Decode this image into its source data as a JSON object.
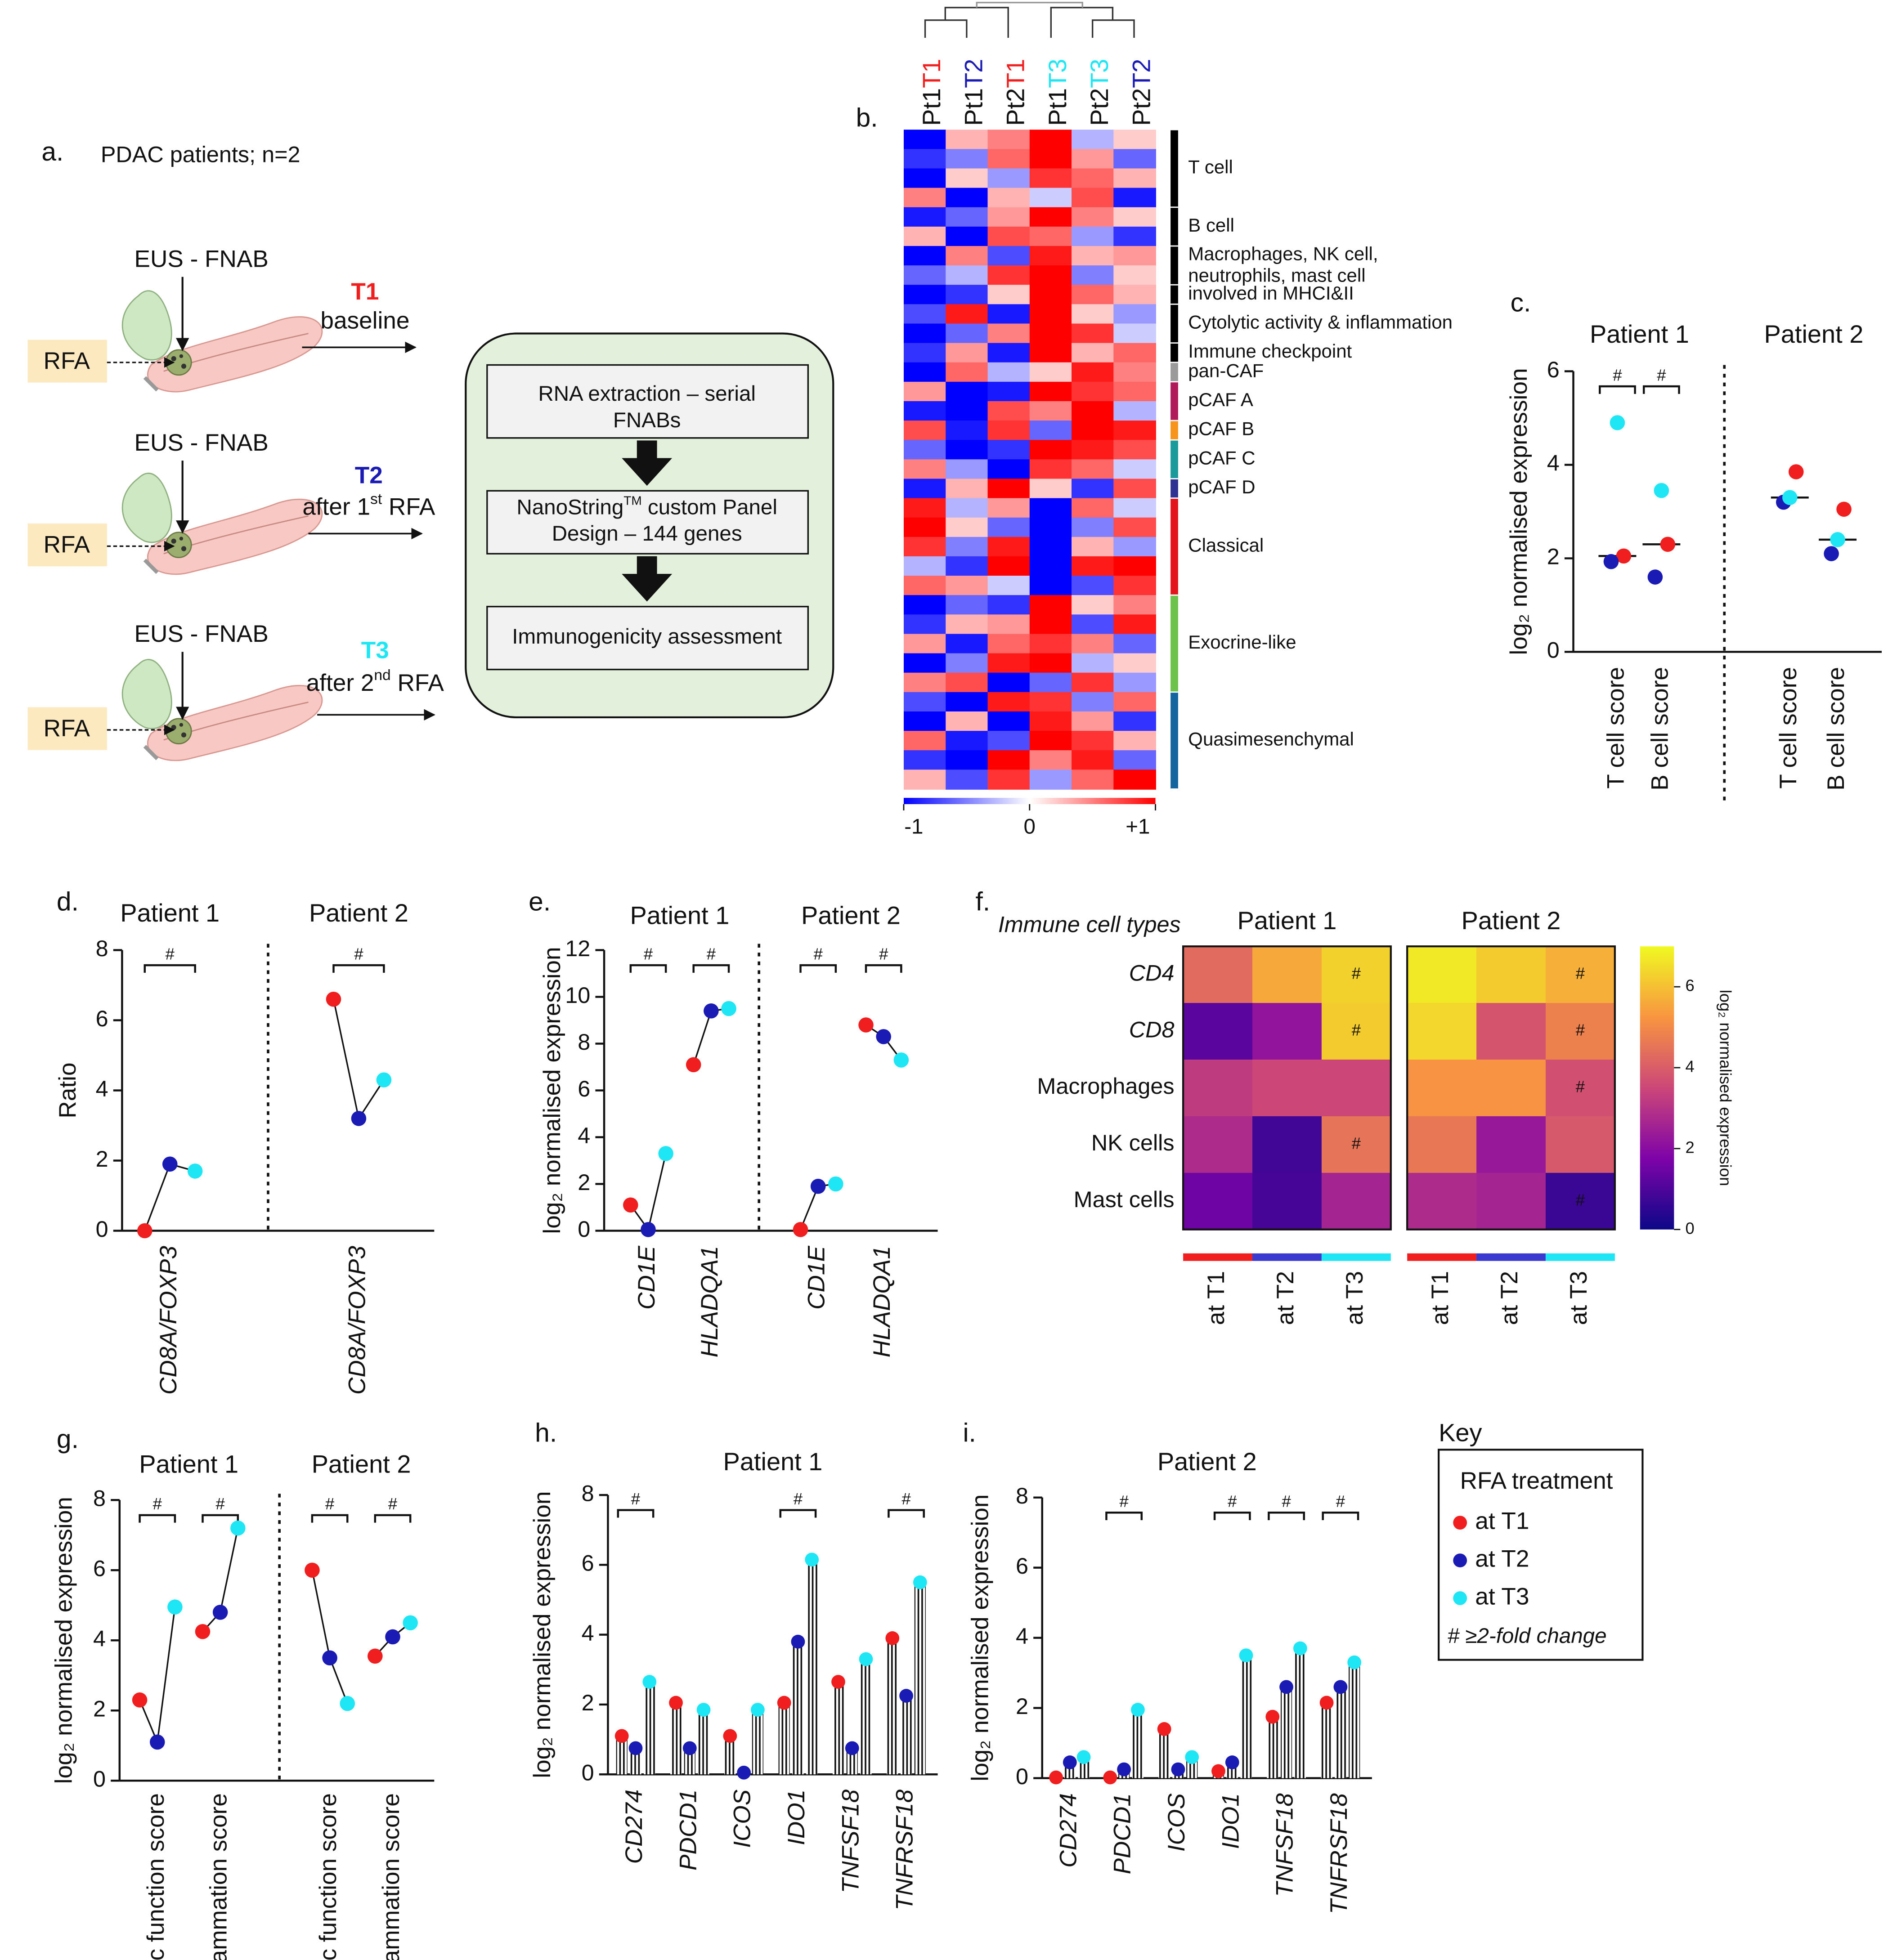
{
  "panel_a": {
    "label": "a.",
    "title": "PDAC patients; n=2",
    "probe": "EUS - FNAB",
    "rfa": "RFA",
    "steps": [
      {
        "time": "T1",
        "color": "#f01e1e",
        "desc": [
          "baseline"
        ]
      },
      {
        "time": "T2",
        "color": "#1a1ab5",
        "desc": [
          "after 1",
          "st",
          " RFA"
        ]
      },
      {
        "time": "T3",
        "color": "#1ee6f5",
        "desc": [
          "after 2",
          "nd",
          " RFA"
        ]
      }
    ],
    "workflow": [
      [
        "RNA extraction – serial",
        "FNABs"
      ],
      [
        "NanoString",
        "TM",
        " custom Panel",
        "Design – 144 genes"
      ],
      [
        "Immunogenicity assessment"
      ]
    ]
  },
  "chart_data": [
    {
      "type": "heatmap_clustered",
      "label": "b.",
      "columns": [
        {
          "patient": "Pt1",
          "time": "T1"
        },
        {
          "patient": "Pt1",
          "time": "T2"
        },
        {
          "patient": "Pt2",
          "time": "T1"
        },
        {
          "patient": "Pt1",
          "time": "T3"
        },
        {
          "patient": "Pt2",
          "time": "T3"
        },
        {
          "patient": "Pt2",
          "time": "T2"
        }
      ],
      "time_colors": {
        "T1": "#f01e1e",
        "T2": "#1a1ab5",
        "T3": "#1ee6f5"
      },
      "clim": [
        -1,
        1
      ],
      "cticks": [
        -1,
        0,
        {
          "value": 1,
          "label": "+1"
        }
      ],
      "groups": [
        {
          "name": [
            "T cell"
          ],
          "color": "#000000",
          "values": [
            [
              -1,
              0.3,
              0.5,
              1,
              -0.3,
              0.2
            ],
            [
              -0.8,
              -0.5,
              0.6,
              1,
              0.4,
              -0.6
            ],
            [
              -1,
              0.2,
              -0.4,
              0.8,
              0.6,
              0.3
            ],
            [
              0.5,
              -1,
              0.3,
              -0.2,
              0.7,
              -0.9
            ]
          ]
        },
        {
          "name": [
            "B cell"
          ],
          "color": "#000000",
          "values": [
            [
              -0.9,
              -0.6,
              0.4,
              1,
              0.5,
              0.2
            ],
            [
              0.3,
              -1,
              0.7,
              0.6,
              -0.4,
              -0.8
            ]
          ]
        },
        {
          "name": [
            "Macrophages, NK cell,",
            "neutrophils, mast cell"
          ],
          "color": "#000000",
          "values": [
            [
              -1,
              0.5,
              -0.7,
              0.9,
              0.3,
              0.4
            ],
            [
              -0.6,
              -0.3,
              0.8,
              1,
              -0.5,
              0.2
            ]
          ]
        },
        {
          "name": [
            "involved in MHCI&II"
          ],
          "color": "#000000",
          "values": [
            [
              -1,
              -0.8,
              0.2,
              1,
              0.6,
              0.3
            ]
          ]
        },
        {
          "name": [
            "Cytolytic activity & inflammation"
          ],
          "color": "#000000",
          "values": [
            [
              -0.7,
              0.9,
              -0.9,
              1,
              0.2,
              -0.4
            ],
            [
              -1,
              -0.6,
              0.5,
              1,
              0.8,
              -0.2
            ]
          ]
        },
        {
          "name": [
            "Immune checkpoint"
          ],
          "color": "#000000",
          "values": [
            [
              -0.8,
              0.4,
              -0.9,
              1,
              0.3,
              0.6
            ]
          ]
        },
        {
          "name": [
            "pan-CAF"
          ],
          "color": "#9a9a9a",
          "values": [
            [
              -1,
              0.6,
              -0.3,
              0.2,
              0.9,
              0.5
            ]
          ]
        },
        {
          "name": [
            "pCAF A"
          ],
          "color": "#b0195a",
          "values": [
            [
              0.4,
              -1,
              -0.9,
              1,
              0.8,
              0.6
            ],
            [
              -0.9,
              -1,
              0.7,
              0.5,
              1,
              -0.3
            ]
          ]
        },
        {
          "name": [
            "pCAF B"
          ],
          "color": "#f7941d",
          "values": [
            [
              0.7,
              -0.9,
              0.8,
              -0.6,
              1,
              0.9
            ]
          ]
        },
        {
          "name": [
            "pCAF C"
          ],
          "color": "#1a9a9a",
          "values": [
            [
              -0.6,
              -1,
              -0.8,
              1,
              0.9,
              0.7
            ],
            [
              0.5,
              -0.4,
              -1,
              0.8,
              0.6,
              -0.2
            ]
          ]
        },
        {
          "name": [
            "pCAF D"
          ],
          "color": "#2e3192",
          "values": [
            [
              -0.9,
              0.3,
              1,
              0.2,
              -0.8,
              0.7
            ]
          ]
        },
        {
          "name": [
            "Classical"
          ],
          "color": "#e3141b",
          "values": [
            [
              0.9,
              -0.3,
              0.4,
              -1,
              0.6,
              -0.2
            ],
            [
              1,
              0.2,
              -0.6,
              -1,
              -0.5,
              0.7
            ],
            [
              0.8,
              -0.5,
              0.9,
              -1,
              0.3,
              -0.4
            ],
            [
              -0.3,
              -0.8,
              1,
              -1,
              0.9,
              1
            ],
            [
              0.6,
              0.4,
              -0.2,
              -1,
              -0.7,
              0.8
            ]
          ]
        },
        {
          "name": [
            "Exocrine-like"
          ],
          "color": "#6cc24a",
          "values": [
            [
              -1,
              -0.6,
              -0.8,
              1,
              0.2,
              0.5
            ],
            [
              -0.8,
              0.3,
              0.4,
              1,
              -0.7,
              0.9
            ],
            [
              0.4,
              -0.9,
              0.6,
              0.8,
              0.5,
              -0.6
            ],
            [
              -1,
              -0.5,
              0.9,
              1,
              -0.3,
              0.2
            ],
            [
              0.5,
              0.7,
              -1,
              -0.6,
              0.8,
              -0.4
            ]
          ]
        },
        {
          "name": [
            "Quasimesenchymal"
          ],
          "color": "#1464a0",
          "values": [
            [
              -0.7,
              -1,
              0.9,
              0.8,
              -0.5,
              0.6
            ],
            [
              -1,
              0.3,
              -1,
              0.9,
              0.4,
              -0.8
            ],
            [
              0.6,
              -0.9,
              -0.7,
              1,
              0.8,
              0.3
            ],
            [
              -0.8,
              -1,
              1,
              0.5,
              0.9,
              -0.6
            ],
            [
              0.3,
              -0.7,
              0.8,
              -0.4,
              0.6,
              1
            ]
          ]
        }
      ]
    },
    {
      "type": "dot",
      "label": "c.",
      "ylabel": "log₂ normalised expression",
      "ylim": [
        0,
        6
      ],
      "yticks": [
        0,
        2,
        4,
        6
      ],
      "groups": [
        "Patient 1",
        "Patient 2"
      ],
      "categories": [
        "T cell score",
        "B cell score",
        "T cell score",
        "B cell score"
      ],
      "significance": [
        "#",
        "#",
        null,
        null
      ],
      "median": true,
      "connect": false,
      "italic": false,
      "series": [
        {
          "name": "at T1",
          "color": "#f01e1e",
          "values": [
            2.05,
            2.3,
            3.85,
            3.05
          ]
        },
        {
          "name": "at T2",
          "color": "#1a1ab5",
          "values": [
            1.93,
            1.6,
            3.2,
            2.1
          ]
        },
        {
          "name": "at T3",
          "color": "#1ee6f5",
          "values": [
            4.9,
            3.45,
            3.3,
            2.4
          ]
        }
      ]
    },
    {
      "type": "dot",
      "label": "d.",
      "ylabel": "Ratio",
      "ylim": [
        0,
        8
      ],
      "yticks": [
        0,
        2,
        4,
        6,
        8
      ],
      "groups": [
        "Patient 1",
        "Patient 2"
      ],
      "categories": [
        "CD8A/FOXP3",
        "CD8A/FOXP3"
      ],
      "significance": [
        "#",
        "#"
      ],
      "median": false,
      "connect": true,
      "italic": true,
      "series": [
        {
          "name": "at T1",
          "color": "#f01e1e",
          "values": [
            0,
            6.6
          ]
        },
        {
          "name": "at T2",
          "color": "#1a1ab5",
          "values": [
            1.9,
            3.2
          ]
        },
        {
          "name": "at T3",
          "color": "#1ee6f5",
          "values": [
            1.7,
            4.3
          ]
        }
      ]
    },
    {
      "type": "dot",
      "label": "e.",
      "ylabel": "log₂ normalised expression",
      "ylim": [
        0,
        12
      ],
      "yticks": [
        0,
        2,
        4,
        6,
        8,
        10,
        12
      ],
      "groups": [
        "Patient 1",
        "Patient 2"
      ],
      "categories": [
        "CD1E",
        "HLADQA1",
        "CD1E",
        "HLADQA1"
      ],
      "significance": [
        "#",
        "#",
        "#",
        "#"
      ],
      "median": false,
      "connect": true,
      "italic": true,
      "series": [
        {
          "name": "at T1",
          "color": "#f01e1e",
          "values": [
            1.1,
            7.1,
            0.05,
            8.8
          ]
        },
        {
          "name": "at T2",
          "color": "#1a1ab5",
          "values": [
            0.05,
            9.4,
            1.9,
            8.3
          ]
        },
        {
          "name": "at T3",
          "color": "#1ee6f5",
          "values": [
            3.3,
            9.5,
            2.0,
            7.3
          ]
        }
      ]
    },
    {
      "type": "heatmap",
      "label": "f.",
      "row_title": "Immune cell types",
      "rows": [
        "CD4",
        "CD8",
        "Macrophages",
        "NK cells",
        "Mast cells"
      ],
      "row_style": [
        "italic",
        "italic",
        "normal",
        "normal",
        "normal"
      ],
      "columns": [
        "at T1",
        "at T2",
        "at T3"
      ],
      "column_colors": [
        "#f01e1e",
        "#3a3ad0",
        "#1ee6f5"
      ],
      "clim": [
        0,
        7
      ],
      "cticks": [
        0,
        2,
        4,
        6
      ],
      "clabel": "log₂ normalised expression",
      "colormap": "plasma",
      "panels": [
        {
          "title": "Patient 1",
          "values": [
            [
              4.3,
              5.6,
              6.3
            ],
            [
              1.2,
              2.2,
              6.2
            ],
            [
              3.2,
              3.5,
              3.5
            ],
            [
              2.8,
              0.8,
              4.5
            ],
            [
              1.5,
              0.9,
              2.6
            ]
          ],
          "marks": [
            [
              null,
              null,
              "#"
            ],
            [
              null,
              null,
              "#"
            ],
            [
              null,
              null,
              null
            ],
            [
              null,
              null,
              "#"
            ],
            [
              null,
              null,
              null
            ]
          ]
        },
        {
          "title": "Patient 2",
          "values": [
            [
              6.7,
              6.2,
              5.7
            ],
            [
              6.4,
              3.8,
              4.8
            ],
            [
              5.2,
              5.2,
              3.7
            ],
            [
              4.6,
              2.3,
              3.9
            ],
            [
              2.8,
              2.6,
              0.7
            ]
          ],
          "marks": [
            [
              null,
              null,
              "#"
            ],
            [
              null,
              null,
              "#"
            ],
            [
              null,
              null,
              "#"
            ],
            [
              null,
              null,
              null
            ],
            [
              null,
              null,
              "#"
            ]
          ]
        }
      ]
    },
    {
      "type": "dot",
      "label": "g.",
      "ylabel": "log₂ normalised expression",
      "ylim": [
        0,
        8
      ],
      "yticks": [
        0,
        2,
        4,
        6,
        8
      ],
      "groups": [
        "Patient 1",
        "Patient 2"
      ],
      "categories": [
        "Cytolytic function score",
        "Inflammation score",
        "Cytolytic function score",
        "Inflammation score"
      ],
      "significance": [
        "#",
        "#",
        "#",
        "#"
      ],
      "median": false,
      "connect": true,
      "italic": false,
      "series": [
        {
          "name": "at T1",
          "color": "#f01e1e",
          "values": [
            2.3,
            4.25,
            6.0,
            3.55
          ]
        },
        {
          "name": "at T2",
          "color": "#1a1ab5",
          "values": [
            1.1,
            4.8,
            3.5,
            4.1
          ]
        },
        {
          "name": "at T3",
          "color": "#1ee6f5",
          "values": [
            4.95,
            7.2,
            2.2,
            4.5
          ]
        }
      ]
    },
    {
      "type": "lollipop",
      "label": "h.",
      "title": "Patient 1",
      "ylabel": "log₂ normalised expression",
      "ylim": [
        0,
        8
      ],
      "yticks": [
        0,
        2,
        4,
        6,
        8
      ],
      "categories": [
        "CD274",
        "PDCD1",
        "ICOS",
        "IDO1",
        "TNFSF18",
        "TNFRSF18"
      ],
      "italic": true,
      "significance": [
        "#",
        null,
        null,
        "#",
        null,
        "#"
      ],
      "series": [
        {
          "name": "at T1",
          "color": "#f01e1e",
          "values": [
            1.1,
            2.05,
            1.1,
            2.05,
            2.65,
            3.9
          ]
        },
        {
          "name": "at T2",
          "color": "#1a1ab5",
          "values": [
            0.75,
            0.75,
            0.05,
            3.8,
            0.75,
            2.25
          ]
        },
        {
          "name": "at T3",
          "color": "#1ee6f5",
          "values": [
            2.65,
            1.85,
            1.85,
            6.15,
            3.3,
            5.5
          ]
        }
      ]
    },
    {
      "type": "lollipop",
      "label": "i.",
      "title": "Patient 2",
      "ylabel": "log₂ normalised expression",
      "ylim": [
        0,
        8
      ],
      "yticks": [
        0,
        2,
        4,
        6,
        8
      ],
      "categories": [
        "CD274",
        "PDCD1",
        "ICOS",
        "IDO1",
        "TNFSF18",
        "TNFRSF18"
      ],
      "italic": true,
      "significance": [
        null,
        "#",
        null,
        "#",
        "#",
        "#"
      ],
      "series": [
        {
          "name": "at T1",
          "color": "#f01e1e",
          "values": [
            0.02,
            0.02,
            1.4,
            0.2,
            1.75,
            2.15
          ]
        },
        {
          "name": "at T2",
          "color": "#1a1ab5",
          "values": [
            0.45,
            0.25,
            0.25,
            0.45,
            2.6,
            2.6
          ]
        },
        {
          "name": "at T3",
          "color": "#1ee6f5",
          "values": [
            0.6,
            1.95,
            0.6,
            3.5,
            3.7,
            3.3
          ]
        }
      ]
    }
  ],
  "key": {
    "title": "Key",
    "subtitle": "RFA treatment",
    "items": [
      {
        "name": "at T1",
        "color": "#f01e1e"
      },
      {
        "name": "at T2",
        "color": "#1a1ab5"
      },
      {
        "name": "at T3",
        "color": "#1ee6f5"
      }
    ],
    "note": "# ≥2-fold change"
  }
}
